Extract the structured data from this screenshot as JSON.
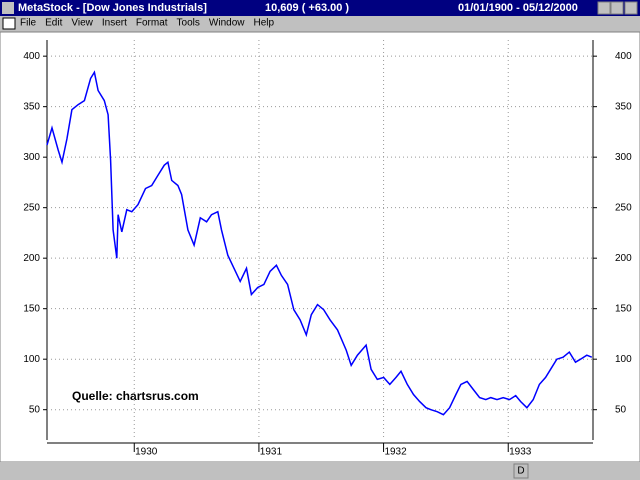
{
  "window": {
    "title": "MetaStock - [Dow Jones Industrials]",
    "quote": "10,609 ( +63.00 )",
    "date_range": "01/01/1900 - 05/12/2000",
    "menu": [
      "File",
      "Edit",
      "View",
      "Insert",
      "Format",
      "Tools",
      "Window",
      "Help"
    ],
    "toolbar_button": "D"
  },
  "chart_data": {
    "type": "line",
    "annotation": "Quelle: chartsrus.com",
    "x": [
      1929.3,
      1929.34,
      1929.39,
      1929.42,
      1929.46,
      1929.5,
      1929.55,
      1929.6,
      1929.65,
      1929.68,
      1929.71,
      1929.76,
      1929.79,
      1929.81,
      1929.83,
      1929.86,
      1929.87,
      1929.9,
      1929.94,
      1929.98,
      1930.03,
      1930.09,
      1930.14,
      1930.19,
      1930.24,
      1930.27,
      1930.3,
      1930.35,
      1930.38,
      1930.43,
      1930.48,
      1930.53,
      1930.58,
      1930.62,
      1930.67,
      1930.7,
      1930.75,
      1930.8,
      1930.85,
      1930.9,
      1930.94,
      1930.99,
      1931.04,
      1931.09,
      1931.14,
      1931.18,
      1931.23,
      1931.28,
      1931.33,
      1931.38,
      1931.42,
      1931.47,
      1931.52,
      1931.57,
      1931.63,
      1931.7,
      1931.74,
      1931.79,
      1931.86,
      1931.9,
      1931.95,
      1932.0,
      1932.05,
      1932.1,
      1932.14,
      1932.19,
      1932.24,
      1932.29,
      1932.34,
      1932.38,
      1932.43,
      1932.48,
      1932.53,
      1932.58,
      1932.62,
      1932.67,
      1932.72,
      1932.77,
      1932.82,
      1932.86,
      1932.91,
      1932.96,
      1933.01,
      1933.06,
      1933.1,
      1933.15,
      1933.2,
      1933.25,
      1933.3,
      1933.34,
      1933.39,
      1933.44,
      1933.49,
      1933.54,
      1933.58,
      1933.63,
      1933.67
    ],
    "series": [
      {
        "name": "Dow Jones Industrials",
        "color": "#0000ff",
        "values": [
          312,
          329,
          307,
          295,
          318,
          347,
          352,
          356,
          378,
          384,
          366,
          356,
          342,
          297,
          228,
          200,
          243,
          226,
          248,
          246,
          253,
          269,
          272,
          282,
          292,
          295,
          277,
          272,
          263,
          228,
          213,
          240,
          236,
          243,
          246,
          228,
          203,
          190,
          177,
          190,
          164,
          171,
          174,
          187,
          193,
          183,
          174,
          149,
          139,
          124,
          144,
          154,
          149,
          139,
          129,
          109,
          94,
          104,
          114,
          90,
          80,
          82,
          75,
          82,
          88,
          75,
          65,
          58,
          52,
          50,
          48,
          45,
          52,
          65,
          75,
          78,
          70,
          62,
          60,
          62,
          60,
          62,
          60,
          64,
          58,
          52,
          60,
          75,
          82,
          90,
          100,
          102,
          107,
          97,
          100,
          104,
          102
        ]
      }
    ],
    "xlim": [
      1929.3,
      1933.68
    ],
    "xticks": [
      1930,
      1931,
      1932,
      1933
    ],
    "ylim": [
      20,
      416
    ],
    "yticks": [
      50,
      100,
      150,
      200,
      250,
      300,
      350,
      400
    ],
    "grid": true
  }
}
